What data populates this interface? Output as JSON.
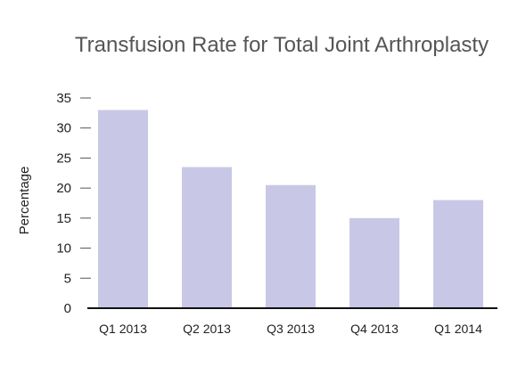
{
  "chart_data": {
    "type": "bar",
    "title": "Transfusion Rate for Total Joint Arthroplasty",
    "xlabel": "",
    "ylabel": "Percentage",
    "categories": [
      "Q1 2013",
      "Q2 2013",
      "Q3 2013",
      "Q4 2013",
      "Q1 2014"
    ],
    "values": [
      33,
      23.5,
      20.5,
      15,
      18
    ],
    "ylim": [
      0,
      35
    ],
    "yticks": [
      0,
      5,
      10,
      15,
      20,
      25,
      30,
      35
    ],
    "grid": false,
    "bar_color": "#c8c8e6",
    "axis_color": "#111111"
  }
}
